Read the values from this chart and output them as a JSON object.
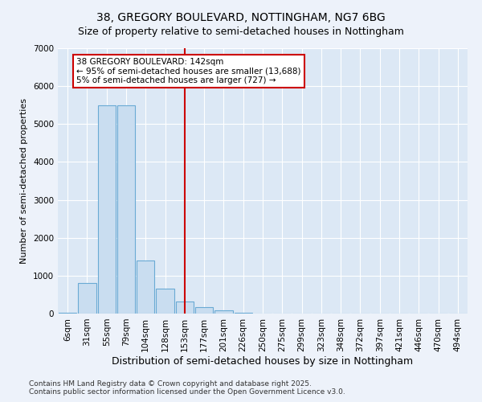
{
  "title1": "38, GREGORY BOULEVARD, NOTTINGHAM, NG7 6BG",
  "title2": "Size of property relative to semi-detached houses in Nottingham",
  "xlabel": "Distribution of semi-detached houses by size in Nottingham",
  "ylabel": "Number of semi-detached properties",
  "categories": [
    "6sqm",
    "31sqm",
    "55sqm",
    "79sqm",
    "104sqm",
    "128sqm",
    "153sqm",
    "177sqm",
    "201sqm",
    "226sqm",
    "250sqm",
    "275sqm",
    "299sqm",
    "323sqm",
    "348sqm",
    "372sqm",
    "397sqm",
    "421sqm",
    "446sqm",
    "470sqm",
    "494sqm"
  ],
  "values": [
    15,
    800,
    5500,
    5500,
    1400,
    650,
    320,
    170,
    80,
    30,
    10,
    3,
    1,
    0,
    0,
    0,
    0,
    0,
    0,
    0,
    0
  ],
  "bar_color": "#c9ddf0",
  "bar_edge_color": "#6aaad4",
  "vline_color": "#cc0000",
  "annotation_title": "38 GREGORY BOULEVARD: 142sqm",
  "annotation_line1": "← 95% of semi-detached houses are smaller (13,688)",
  "annotation_line2": "5% of semi-detached houses are larger (727) →",
  "annotation_box_color": "#ffffff",
  "annotation_box_edge": "#cc0000",
  "ylim": [
    0,
    7000
  ],
  "yticks": [
    0,
    1000,
    2000,
    3000,
    4000,
    5000,
    6000,
    7000
  ],
  "footer1": "Contains HM Land Registry data © Crown copyright and database right 2025.",
  "footer2": "Contains public sector information licensed under the Open Government Licence v3.0.",
  "bg_color": "#edf2fa",
  "plot_bg_color": "#dce8f5",
  "grid_color": "#ffffff",
  "title1_fontsize": 10,
  "title2_fontsize": 9,
  "xlabel_fontsize": 9,
  "ylabel_fontsize": 8,
  "tick_fontsize": 7.5,
  "footer_fontsize": 6.5
}
